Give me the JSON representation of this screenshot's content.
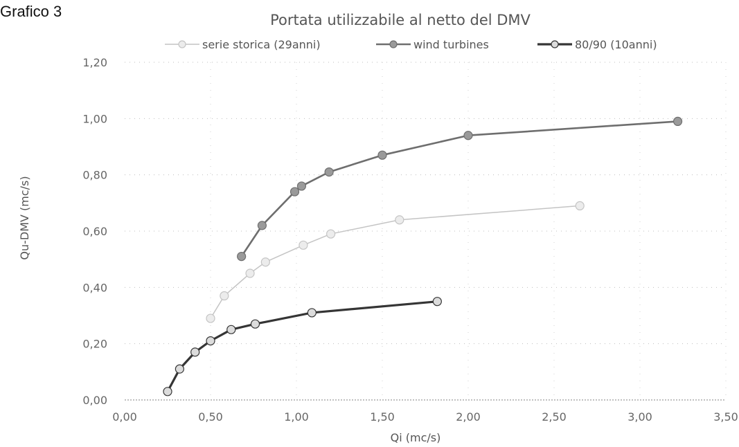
{
  "figure_label": "Grafico 3",
  "chart_data": {
    "type": "line",
    "title": "Portata utilizzabile al netto del DMV",
    "xlabel": "Qi (mc/s)",
    "ylabel": "Qu-DMV (mc/s)",
    "xlim": [
      0,
      3.5
    ],
    "ylim": [
      0,
      1.2
    ],
    "x_ticks": [
      "0,00",
      "0,50",
      "1,00",
      "1,50",
      "2,00",
      "2,50",
      "3,00",
      "3,50"
    ],
    "y_ticks": [
      "0,00",
      "0,20",
      "0,40",
      "0,60",
      "0,80",
      "1,00",
      "1,20"
    ],
    "grid": true,
    "legend_position": "top",
    "series": [
      {
        "name": "serie storica (29anni)",
        "color": "#c4c4c4",
        "x": [
          0.5,
          0.58,
          0.73,
          0.82,
          1.04,
          1.2,
          1.6,
          2.65
        ],
        "y": [
          0.29,
          0.37,
          0.45,
          0.49,
          0.55,
          0.59,
          0.64,
          0.69
        ]
      },
      {
        "name": "wind turbines",
        "color": "#6e6e6e",
        "x": [
          0.68,
          0.8,
          0.99,
          1.03,
          1.19,
          1.5,
          2.0,
          3.22
        ],
        "y": [
          0.51,
          0.62,
          0.74,
          0.76,
          0.81,
          0.87,
          0.94,
          0.99
        ]
      },
      {
        "name": "80/90 (10anni)",
        "color": "#353535",
        "x": [
          0.25,
          0.32,
          0.41,
          0.5,
          0.62,
          0.76,
          1.09,
          1.82
        ],
        "y": [
          0.03,
          0.11,
          0.17,
          0.21,
          0.25,
          0.27,
          0.31,
          0.35
        ]
      }
    ]
  }
}
